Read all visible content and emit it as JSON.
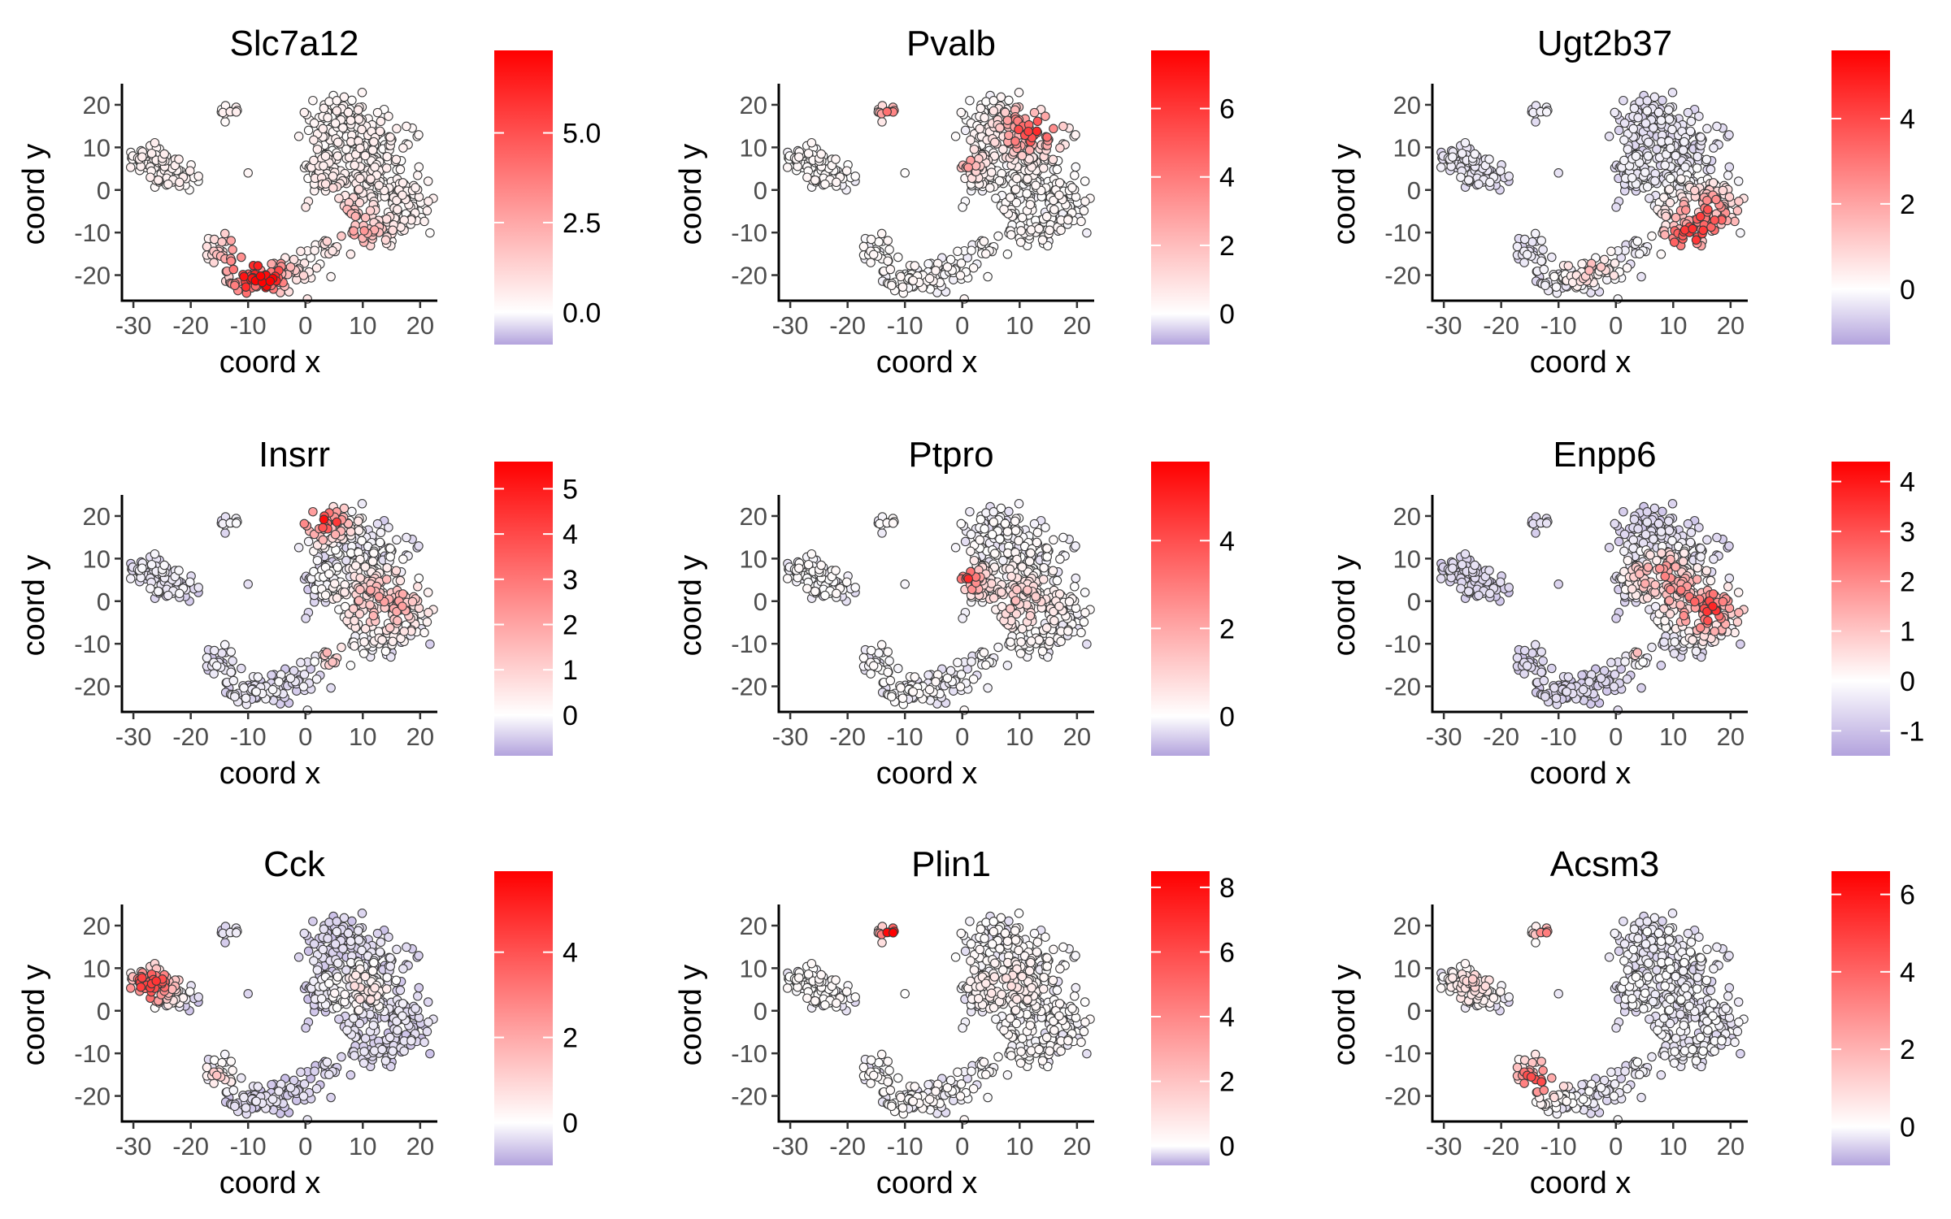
{
  "chart_data": [
    {
      "type": "scatter",
      "title": "Slc7a12",
      "xlabel": "coord x",
      "ylabel": "coord y",
      "xlim": [
        -32,
        23
      ],
      "ylim": [
        -26,
        24
      ],
      "xticks": [
        -30,
        -20,
        -10,
        0,
        10,
        20
      ],
      "yticks": [
        -20,
        -10,
        0,
        10,
        20
      ],
      "color_scale": {
        "min": -0.9,
        "max": 7.3,
        "ticks": [
          0.0,
          2.5,
          5.0
        ],
        "tick_labels": [
          "0.0",
          "2.5",
          "5.0"
        ],
        "low": "#b3a3dd",
        "mid": "#ffffff",
        "high": "#ff0000"
      },
      "hotspots": [
        {
          "x": -8,
          "y": -21,
          "r": 5,
          "v": 6.0
        },
        {
          "x": -12,
          "y": -14,
          "r": 4,
          "v": 2.0
        },
        {
          "x": 5,
          "y": -6,
          "r": 6,
          "v": 1.2
        },
        {
          "x": 10,
          "y": -10,
          "r": 4,
          "v": 1.5
        }
      ],
      "base_value": 0.25
    },
    {
      "type": "scatter",
      "title": "Pvalb",
      "xlabel": "coord x",
      "ylabel": "coord y",
      "xlim": [
        -32,
        23
      ],
      "ylim": [
        -26,
        24
      ],
      "xticks": [
        -30,
        -20,
        -10,
        0,
        10,
        20
      ],
      "yticks": [
        -20,
        -10,
        0,
        10,
        20
      ],
      "color_scale": {
        "min": -0.9,
        "max": 7.7,
        "ticks": [
          0,
          2,
          4,
          6
        ],
        "tick_labels": [
          "0",
          "2",
          "4",
          "6"
        ],
        "low": "#b3a3dd",
        "mid": "#ffffff",
        "high": "#ff0000"
      },
      "hotspots": [
        {
          "x": 12,
          "y": 14,
          "r": 5,
          "v": 4.5
        },
        {
          "x": -13,
          "y": 18,
          "r": 2,
          "v": 3.0
        },
        {
          "x": 0,
          "y": 6,
          "r": 3,
          "v": 2.5
        }
      ],
      "base_value": 0.05
    },
    {
      "type": "scatter",
      "title": "Ugt2b37",
      "xlabel": "coord x",
      "ylabel": "coord y",
      "xlim": [
        -32,
        23
      ],
      "ylim": [
        -26,
        24
      ],
      "xticks": [
        -30,
        -20,
        -10,
        0,
        10,
        20
      ],
      "yticks": [
        -20,
        -10,
        0,
        10,
        20
      ],
      "color_scale": {
        "min": -1.3,
        "max": 5.6,
        "ticks": [
          0,
          2,
          4
        ],
        "tick_labels": [
          "0",
          "2",
          "4"
        ],
        "low": "#b3a3dd",
        "mid": "#ffffff",
        "high": "#ff0000"
      },
      "hotspots": [
        {
          "x": 16,
          "y": -6,
          "r": 6,
          "v": 3.0
        },
        {
          "x": 12,
          "y": -12,
          "r": 4,
          "v": 3.0
        },
        {
          "x": -4,
          "y": -18,
          "r": 5,
          "v": 1.2
        }
      ],
      "base_value": -0.4
    },
    {
      "type": "scatter",
      "title": "Insrr",
      "xlabel": "coord x",
      "ylabel": "coord y",
      "xlim": [
        -32,
        23
      ],
      "ylim": [
        -26,
        24
      ],
      "xticks": [
        -30,
        -20,
        -10,
        0,
        10,
        20
      ],
      "yticks": [
        -20,
        -10,
        0,
        10,
        20
      ],
      "color_scale": {
        "min": -0.9,
        "max": 5.6,
        "ticks": [
          0,
          1,
          2,
          3,
          4,
          5
        ],
        "tick_labels": [
          "0",
          "1",
          "2",
          "3",
          "4",
          "5"
        ],
        "low": "#b3a3dd",
        "mid": "#ffffff",
        "high": "#ff0000"
      },
      "hotspots": [
        {
          "x": 3,
          "y": 19,
          "r": 4,
          "v": 4.5
        },
        {
          "x": 14,
          "y": 0,
          "r": 7,
          "v": 1.8
        },
        {
          "x": 5,
          "y": -13,
          "r": 3,
          "v": 1.5
        }
      ],
      "base_value": -0.3
    },
    {
      "type": "scatter",
      "title": "Ptpro",
      "xlabel": "coord x",
      "ylabel": "coord y",
      "xlim": [
        -32,
        23
      ],
      "ylim": [
        -26,
        24
      ],
      "xticks": [
        -30,
        -20,
        -10,
        0,
        10,
        20
      ],
      "yticks": [
        -20,
        -10,
        0,
        10,
        20
      ],
      "color_scale": {
        "min": -0.9,
        "max": 5.8,
        "ticks": [
          0,
          2,
          4
        ],
        "tick_labels": [
          "0",
          "2",
          "4"
        ],
        "low": "#b3a3dd",
        "mid": "#ffffff",
        "high": "#ff0000"
      },
      "hotspots": [
        {
          "x": 0,
          "y": 5,
          "r": 3,
          "v": 4.0
        },
        {
          "x": 10,
          "y": 0,
          "r": 6,
          "v": 1.0
        }
      ],
      "base_value": -0.1
    },
    {
      "type": "scatter",
      "title": "Enpp6",
      "xlabel": "coord x",
      "ylabel": "coord y",
      "xlim": [
        -32,
        23
      ],
      "ylim": [
        -26,
        24
      ],
      "xticks": [
        -30,
        -20,
        -10,
        0,
        10,
        20
      ],
      "yticks": [
        -20,
        -10,
        0,
        10,
        20
      ],
      "color_scale": {
        "min": -1.5,
        "max": 4.4,
        "ticks": [
          -1,
          0,
          1,
          2,
          3,
          4
        ],
        "tick_labels": [
          "-1",
          "0",
          "1",
          "2",
          "3",
          "4"
        ],
        "low": "#b3a3dd",
        "mid": "#ffffff",
        "high": "#ff0000"
      },
      "hotspots": [
        {
          "x": 16,
          "y": -2,
          "r": 6,
          "v": 3.0
        },
        {
          "x": 8,
          "y": 6,
          "r": 6,
          "v": 1.8
        },
        {
          "x": 3,
          "y": -12,
          "r": 3,
          "v": 1.2
        }
      ],
      "base_value": -0.7
    },
    {
      "type": "scatter",
      "title": "Cck",
      "xlabel": "coord x",
      "ylabel": "coord y",
      "xlim": [
        -32,
        23
      ],
      "ylim": [
        -26,
        24
      ],
      "xticks": [
        -30,
        -20,
        -10,
        0,
        10,
        20
      ],
      "yticks": [
        -20,
        -10,
        0,
        10,
        20
      ],
      "color_scale": {
        "min": -1.0,
        "max": 5.9,
        "ticks": [
          0,
          2,
          4
        ],
        "tick_labels": [
          "0",
          "2",
          "4"
        ],
        "low": "#b3a3dd",
        "mid": "#ffffff",
        "high": "#ff0000"
      },
      "hotspots": [
        {
          "x": -27,
          "y": 6,
          "r": 4,
          "v": 4.5
        },
        {
          "x": -15,
          "y": -15,
          "r": 3,
          "v": 1.2
        },
        {
          "x": 10,
          "y": 5,
          "r": 5,
          "v": 0.8
        }
      ],
      "base_value": -0.45
    },
    {
      "type": "scatter",
      "title": "Plin1",
      "xlabel": "coord x",
      "ylabel": "coord y",
      "xlim": [
        -32,
        23
      ],
      "ylim": [
        -26,
        24
      ],
      "xticks": [
        -30,
        -20,
        -10,
        0,
        10,
        20
      ],
      "yticks": [
        -20,
        -10,
        0,
        10,
        20
      ],
      "color_scale": {
        "min": -0.6,
        "max": 8.5,
        "ticks": [
          0,
          2,
          4,
          6,
          8
        ],
        "tick_labels": [
          "0",
          "2",
          "4",
          "6",
          "8"
        ],
        "low": "#b3a3dd",
        "mid": "#ffffff",
        "high": "#ff0000"
      },
      "hotspots": [
        {
          "x": -12.5,
          "y": 18,
          "r": 2,
          "v": 6.5
        },
        {
          "x": 8,
          "y": 6,
          "r": 5,
          "v": 0.6
        }
      ],
      "base_value": 0.0
    },
    {
      "type": "scatter",
      "title": "Acsm3",
      "xlabel": "coord x",
      "ylabel": "coord y",
      "xlim": [
        -32,
        23
      ],
      "ylim": [
        -26,
        24
      ],
      "xticks": [
        -30,
        -20,
        -10,
        0,
        10,
        20
      ],
      "yticks": [
        -20,
        -10,
        0,
        10,
        20
      ],
      "color_scale": {
        "min": -1.0,
        "max": 6.6,
        "ticks": [
          0,
          2,
          4,
          6
        ],
        "tick_labels": [
          "0",
          "2",
          "4",
          "6"
        ],
        "low": "#b3a3dd",
        "mid": "#ffffff",
        "high": "#ff0000"
      },
      "hotspots": [
        {
          "x": -14,
          "y": -16,
          "r": 4,
          "v": 4.0
        },
        {
          "x": -12.5,
          "y": 18,
          "r": 2,
          "v": 2.5
        },
        {
          "x": -25,
          "y": 6,
          "r": 4,
          "v": 1.0
        }
      ],
      "base_value": -0.25
    }
  ]
}
